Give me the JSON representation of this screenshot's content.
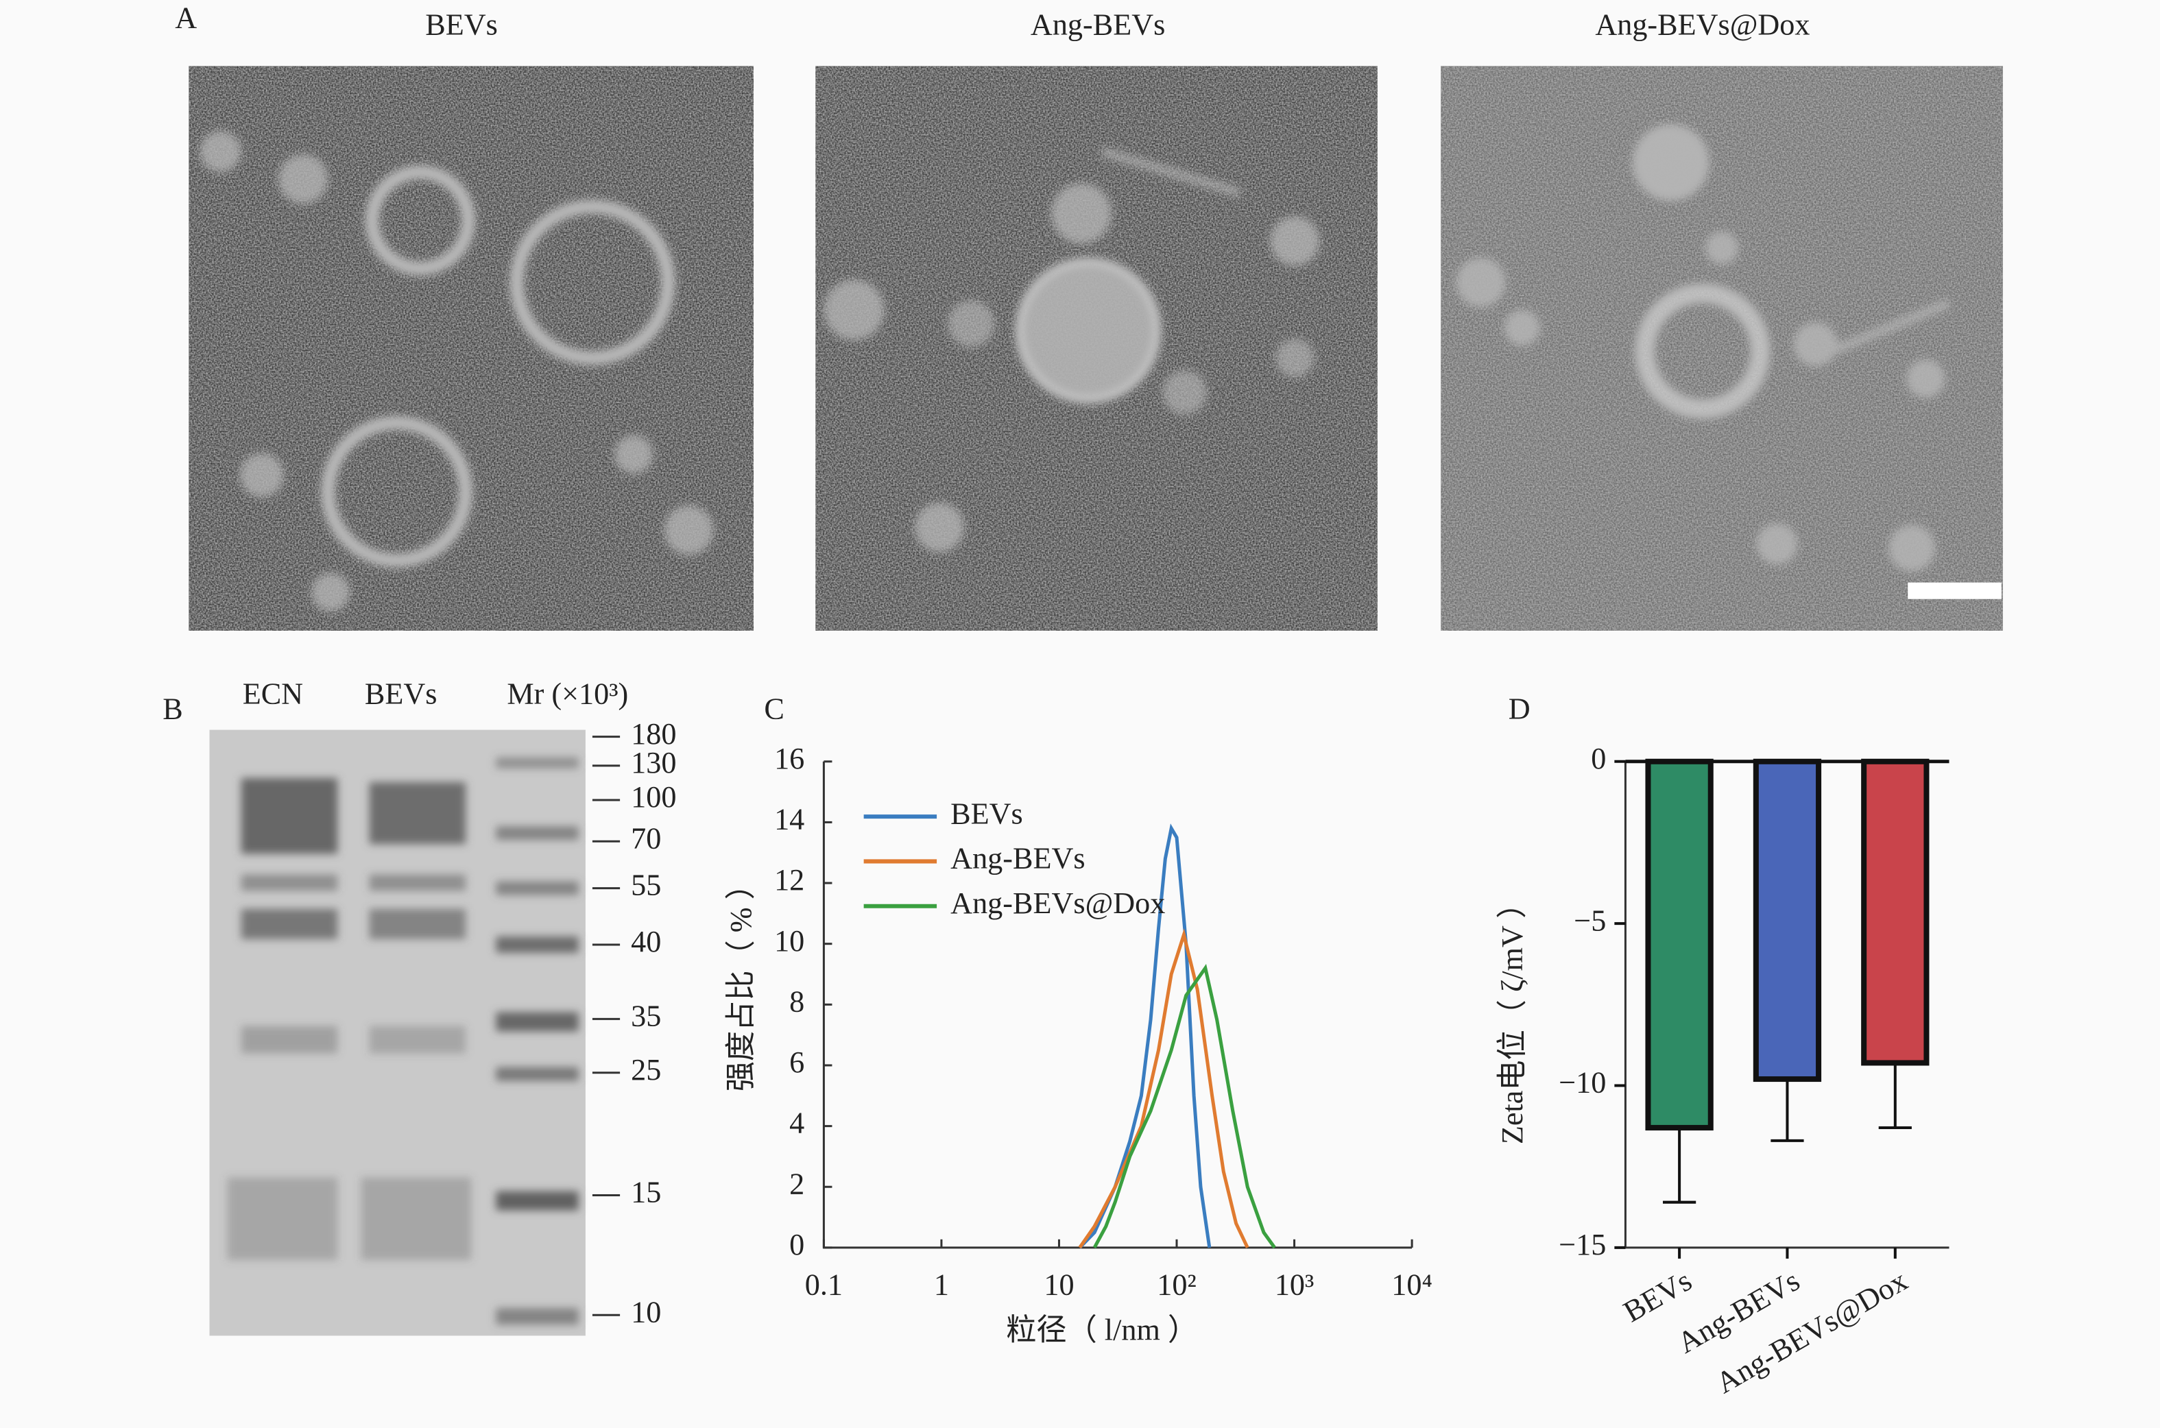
{
  "panel_a": {
    "label": "A",
    "titles": [
      "BEVs",
      "Ang-BEVs",
      "Ang-BEVs@Dox"
    ]
  },
  "panel_b": {
    "label": "B",
    "lanes": [
      "ECN",
      "BEVs",
      "Mr (×10³)"
    ],
    "markers": [
      180,
      130,
      100,
      70,
      55,
      40,
      35,
      25,
      15,
      10
    ]
  },
  "chart_data": [
    {
      "type": "line",
      "panel": "C",
      "xscale": "log",
      "x_label": "粒径（ l/nm ）",
      "y_label": "强度占比（ % ）",
      "xlim": [
        0.1,
        10000
      ],
      "xticks": [
        0.1,
        1,
        10,
        {
          "value": 100,
          "label": "10²"
        },
        {
          "value": 1000,
          "label": "10³"
        },
        {
          "value": 10000,
          "label": "10⁴"
        }
      ],
      "ylim": [
        0,
        16
      ],
      "yticks": [
        0,
        2,
        4,
        6,
        8,
        10,
        12,
        14,
        16
      ],
      "legend": "upper left",
      "series": [
        {
          "name": "BEVs",
          "color": "#3a7dc0",
          "x": [
            15,
            20,
            30,
            40,
            50,
            60,
            70,
            80,
            90,
            100,
            120,
            140,
            160,
            190
          ],
          "values": [
            0,
            0.5,
            2,
            3.5,
            5,
            7.5,
            10.5,
            12.8,
            13.8,
            13.5,
            10,
            5,
            2,
            0
          ]
        },
        {
          "name": "Ang-BEVs",
          "color": "#e07b30",
          "x": [
            15,
            20,
            30,
            50,
            70,
            90,
            115,
            150,
            200,
            250,
            320,
            400
          ],
          "values": [
            0,
            0.7,
            2,
            4,
            6.5,
            9,
            10.3,
            8.5,
            5,
            2.5,
            0.8,
            0
          ]
        },
        {
          "name": "Ang-BEVs@Dox",
          "color": "#3aa040",
          "x": [
            20,
            25,
            30,
            40,
            60,
            90,
            120,
            175,
            220,
            300,
            400,
            550,
            680
          ],
          "values": [
            0,
            0.7,
            1.5,
            3,
            4.5,
            6.5,
            8.3,
            9.2,
            7.5,
            4.5,
            2,
            0.5,
            0
          ]
        }
      ]
    },
    {
      "type": "bar",
      "panel": "D",
      "y_label": "Zeta电位（ ζ/mV ）",
      "categories": [
        "BEVs",
        "Ang-BEVs",
        "Ang-BEVs@Dox"
      ],
      "values": [
        -11.3,
        -9.8,
        -9.3
      ],
      "errors": [
        2.3,
        1.9,
        2.0
      ],
      "colors": [
        "#2e8b65",
        "#4a66b8",
        "#c9444b"
      ],
      "ylim": [
        -15,
        0
      ],
      "yticks": [
        0,
        {
          "value": -5,
          "label": "−5"
        },
        {
          "value": -10,
          "label": "−10"
        },
        {
          "value": -15,
          "label": "−15"
        }
      ]
    }
  ]
}
